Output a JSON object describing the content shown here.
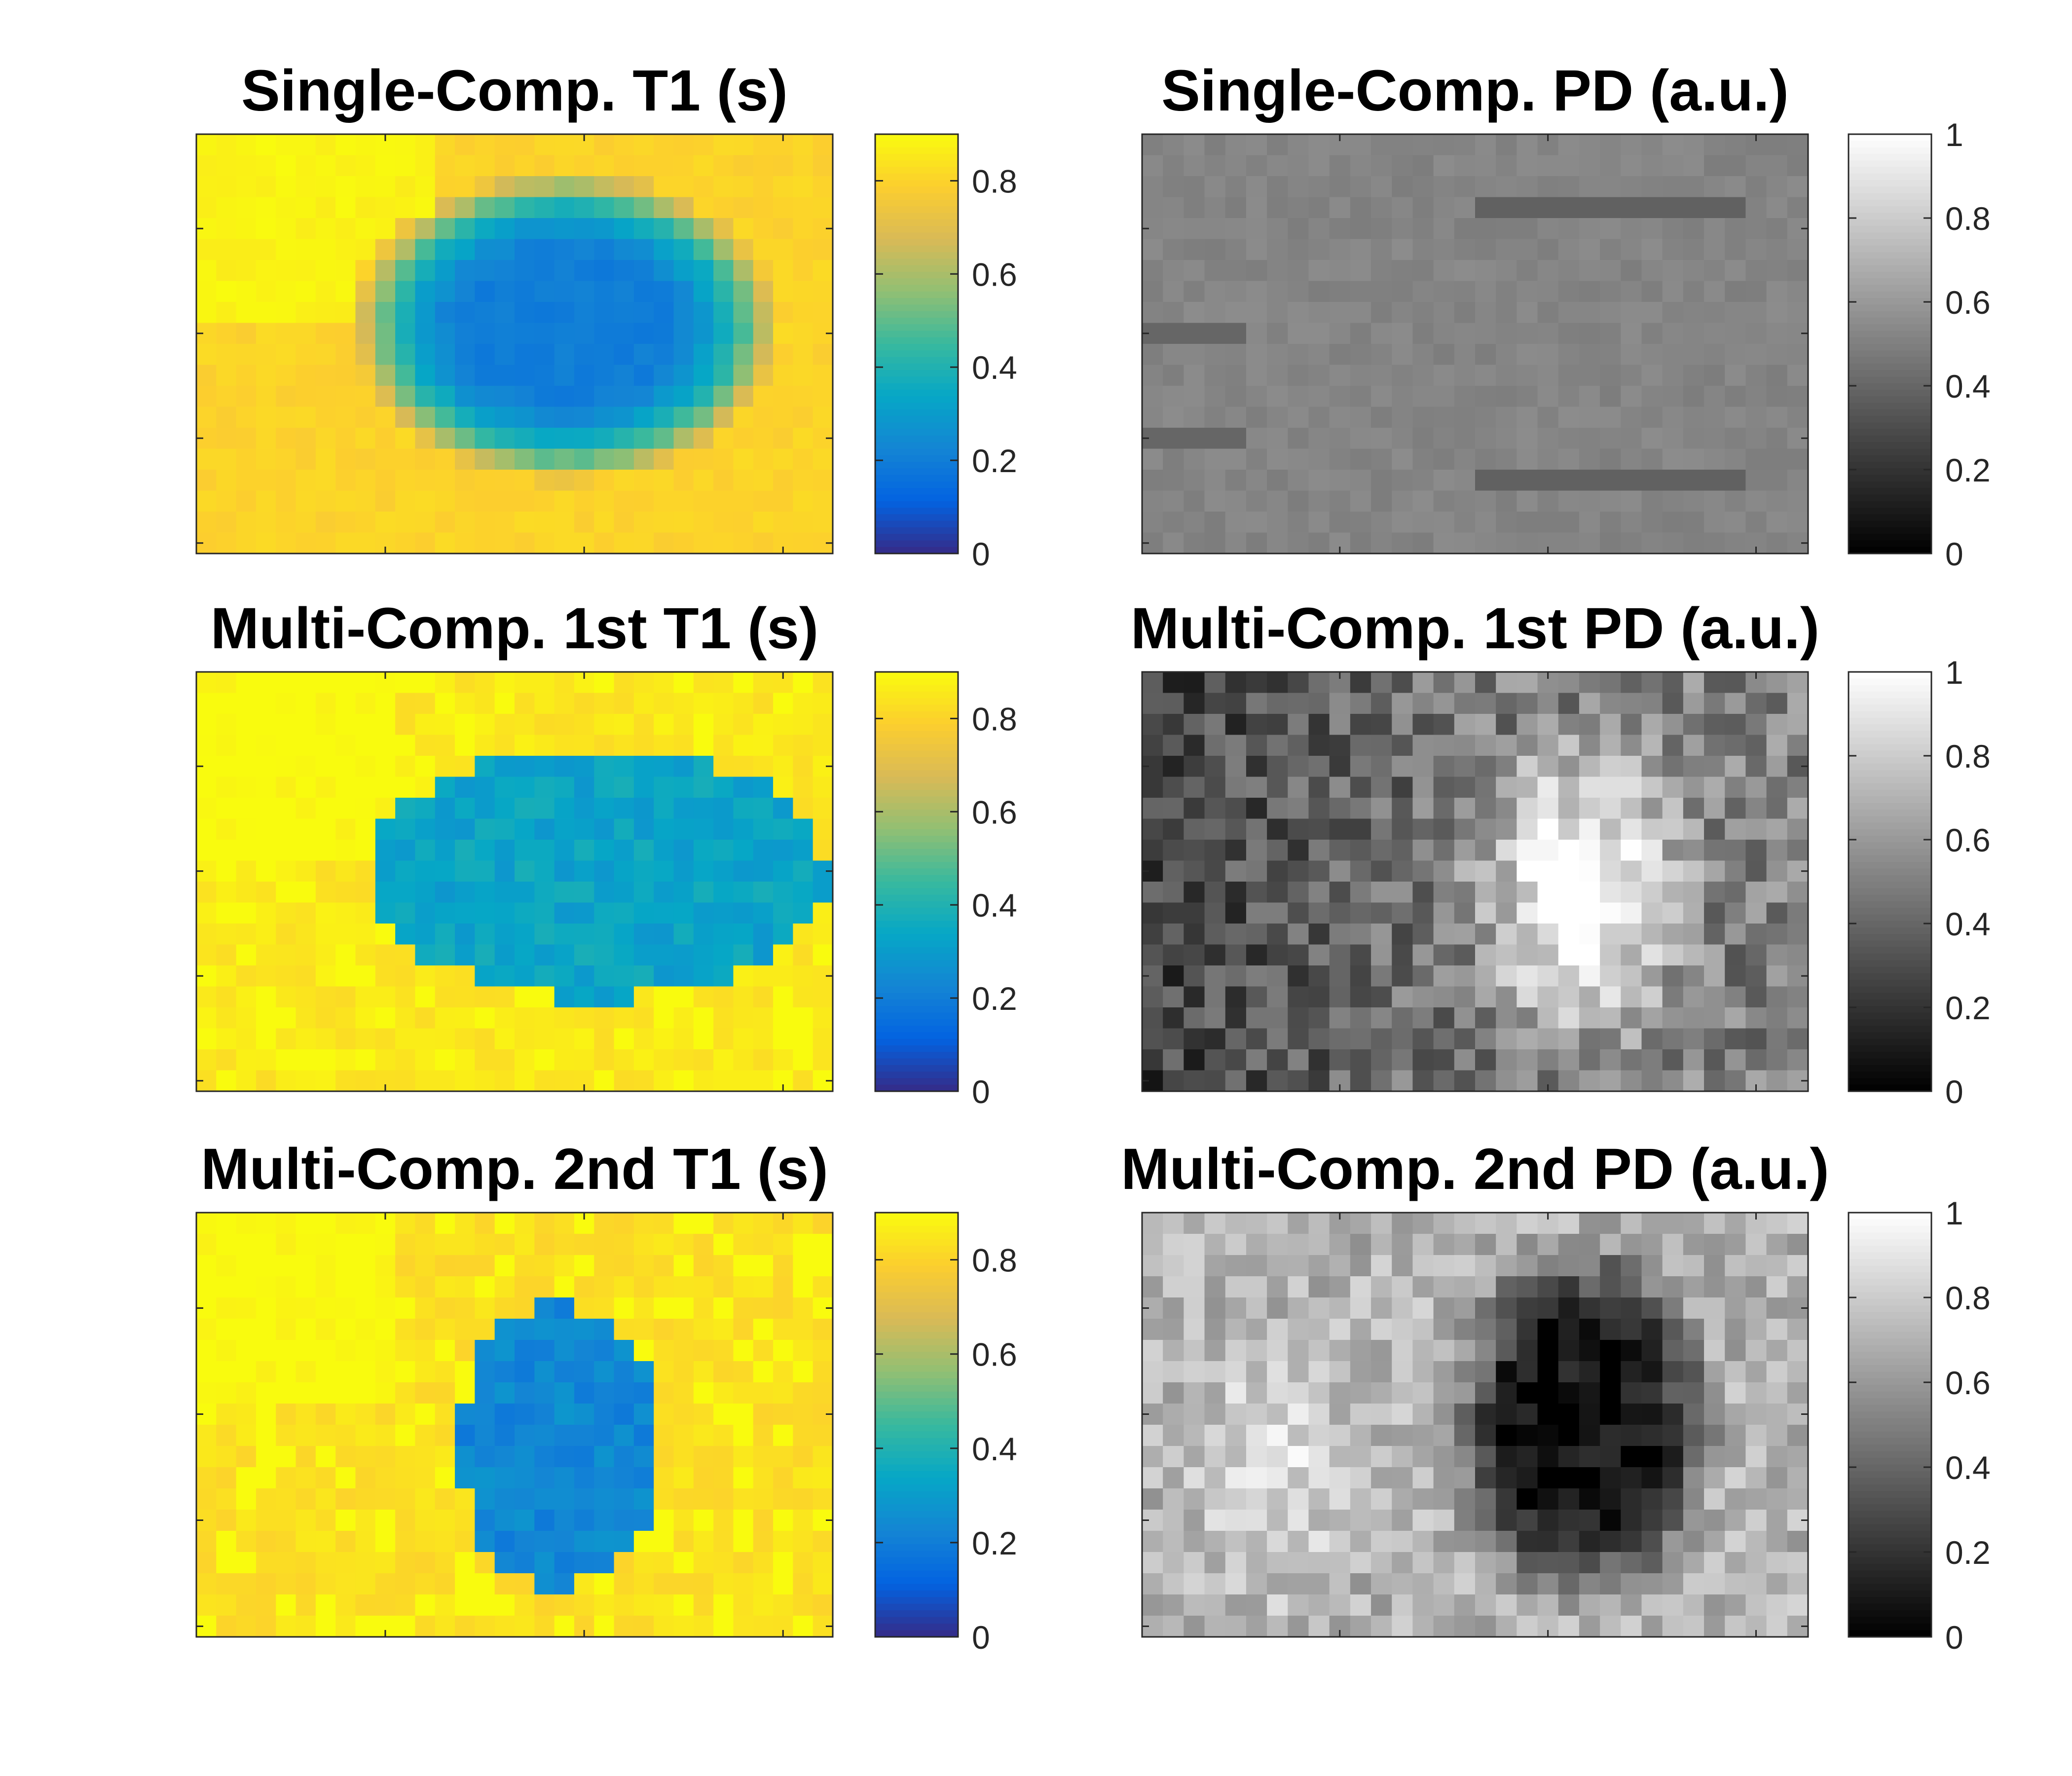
{
  "chart_data": [
    {
      "type": "heatmap",
      "title": "Single-Comp. T1 (s)",
      "colormap": "parula",
      "clim": [
        0,
        0.9
      ],
      "colorbar_ticks": [
        0,
        0.2,
        0.4,
        0.6,
        0.8
      ],
      "colorbar_tick_labels": [
        "0",
        "0.2",
        "0.4",
        "0.6",
        "0.8"
      ],
      "grid_cols": 32,
      "grid_rows": 20,
      "features": {
        "background_value": 0.8,
        "upper_left_value": 0.88,
        "lesion_center": [
          0.58,
          0.46
        ],
        "lesion_radius": [
          0.27,
          0.3
        ],
        "lesion_min_value": 0.2,
        "lesion_profile": "smooth"
      },
      "xticks": [
        10,
        20,
        30
      ],
      "yticks": [
        5,
        10,
        15,
        20
      ]
    },
    {
      "type": "heatmap",
      "title": "Single-Comp. PD (a.u.)",
      "colormap": "gray",
      "clim": [
        0,
        1
      ],
      "colorbar_ticks": [
        0,
        0.2,
        0.4,
        0.6,
        0.8,
        1
      ],
      "colorbar_tick_labels": [
        "0",
        "0.2",
        "0.4",
        "0.6",
        "0.8",
        "1"
      ],
      "grid_cols": 32,
      "grid_rows": 20,
      "features": {
        "background_value": 0.52,
        "dark_band_rows": [
          3,
          16
        ],
        "dark_band_value": 0.38
      },
      "xticks": [
        10,
        20,
        30
      ],
      "yticks": [
        5,
        10,
        15,
        20
      ]
    },
    {
      "type": "heatmap",
      "title": "Multi-Comp. 1st T1 (s)",
      "colormap": "parula",
      "clim": [
        0,
        0.9
      ],
      "colorbar_ticks": [
        0,
        0.2,
        0.4,
        0.6,
        0.8
      ],
      "colorbar_tick_labels": [
        "0",
        "0.2",
        "0.4",
        "0.6",
        "0.8"
      ],
      "grid_cols": 32,
      "grid_rows": 20,
      "features": {
        "background_value": 0.85,
        "lesion_center": [
          0.63,
          0.48
        ],
        "lesion_radius": [
          0.36,
          0.3
        ],
        "lesion_min_value": 0.28,
        "lesion_profile": "flat"
      },
      "xticks": [
        10,
        20,
        30
      ],
      "yticks": [
        5,
        10,
        15,
        20
      ]
    },
    {
      "type": "heatmap",
      "title": "Multi-Comp. 1st PD (a.u.)",
      "colormap": "gray",
      "clim": [
        0,
        1
      ],
      "colorbar_ticks": [
        0,
        0.2,
        0.4,
        0.6,
        0.8,
        1
      ],
      "colorbar_tick_labels": [
        "0",
        "0.2",
        "0.4",
        "0.6",
        "0.8",
        "1"
      ],
      "grid_cols": 32,
      "grid_rows": 20,
      "features": {
        "left_value": 0.25,
        "right_value": 0.5,
        "bright_center": [
          0.66,
          0.52
        ],
        "bright_radius": [
          0.13,
          0.28
        ],
        "bright_value": 0.88,
        "noise": 0.18
      },
      "xticks": [
        10,
        20,
        30
      ],
      "yticks": [
        5,
        10,
        15,
        20
      ]
    },
    {
      "type": "heatmap",
      "title": "Multi-Comp. 2nd T1 (s)",
      "colormap": "parula",
      "clim": [
        0,
        0.9
      ],
      "colorbar_ticks": [
        0,
        0.2,
        0.4,
        0.6,
        0.8
      ],
      "colorbar_tick_labels": [
        "0",
        "0.2",
        "0.4",
        "0.6",
        "0.8"
      ],
      "grid_cols": 32,
      "grid_rows": 20,
      "features": {
        "background_value": 0.83,
        "lesion_center": [
          0.57,
          0.55
        ],
        "lesion_radius": [
          0.16,
          0.33
        ],
        "lesion_min_value": 0.18,
        "lesion_profile": "flat"
      },
      "xticks": [
        10,
        20,
        30
      ],
      "yticks": [
        5,
        10,
        15,
        20
      ]
    },
    {
      "type": "heatmap",
      "title": "Multi-Comp. 2nd PD (a.u.)",
      "colormap": "gray",
      "clim": [
        0,
        1
      ],
      "colorbar_ticks": [
        0,
        0.2,
        0.4,
        0.6,
        0.8,
        1
      ],
      "colorbar_tick_labels": [
        "0",
        "0.2",
        "0.4",
        "0.6",
        "0.8",
        "1"
      ],
      "grid_cols": 32,
      "grid_rows": 20,
      "features": {
        "background_value": 0.7,
        "bright_left_center": [
          0.2,
          0.6
        ],
        "bright_left_value": 0.9,
        "dark_center": [
          0.66,
          0.5
        ],
        "dark_radius": [
          0.15,
          0.33
        ],
        "dark_value": 0.08,
        "noise": 0.14
      },
      "xticks": [
        10,
        20,
        30
      ],
      "yticks": [
        5,
        10,
        15,
        20
      ]
    }
  ],
  "colors": {
    "parula": [
      "#352a87",
      "#0363e1",
      "#1485d4",
      "#06a7c6",
      "#38b99e",
      "#92bf73",
      "#d9ba56",
      "#fcce2e",
      "#f9fb0e"
    ]
  }
}
